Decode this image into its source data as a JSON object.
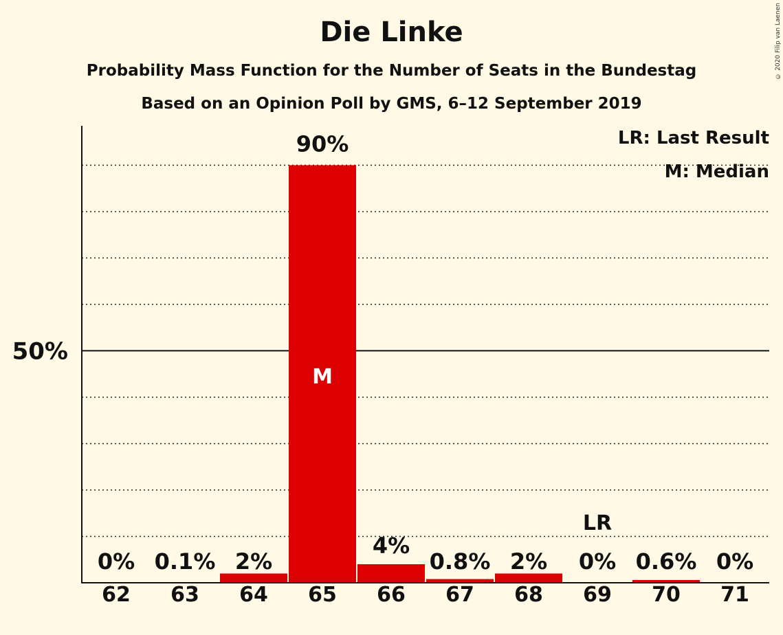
{
  "chart_data": {
    "type": "bar",
    "title": "Die Linke",
    "subtitle": "Probability Mass Function for the Number of Seats in the Bundestag",
    "subtitle2": "Based on an Opinion Poll by GMS, 6–12 September 2019",
    "categories": [
      "62",
      "63",
      "64",
      "65",
      "66",
      "67",
      "68",
      "69",
      "70",
      "71"
    ],
    "values": [
      0,
      0.1,
      2,
      90,
      4,
      0.8,
      2,
      0,
      0.6,
      0
    ],
    "value_labels": [
      "0%",
      "0.1%",
      "2%",
      "90%",
      "4%",
      "0.8%",
      "2%",
      "0%",
      "0.6%",
      "0%"
    ],
    "ylim": [
      0,
      98.5
    ],
    "y_tick_label": "50%",
    "y_tick_value": 50,
    "gridline_values": [
      10,
      20,
      30,
      40,
      60,
      70,
      80,
      90
    ],
    "median_index": 3,
    "median_marker": "M",
    "last_result_index": 7,
    "last_result_marker": "LR",
    "legend": {
      "last_result": "LR: Last Result",
      "median": "M: Median",
      "position": "top-right"
    },
    "copyright": "© 2020 Filip van Laenen",
    "colors": {
      "bar": "#DD0000",
      "background": "#FFF9E5",
      "text": "#111111"
    }
  }
}
